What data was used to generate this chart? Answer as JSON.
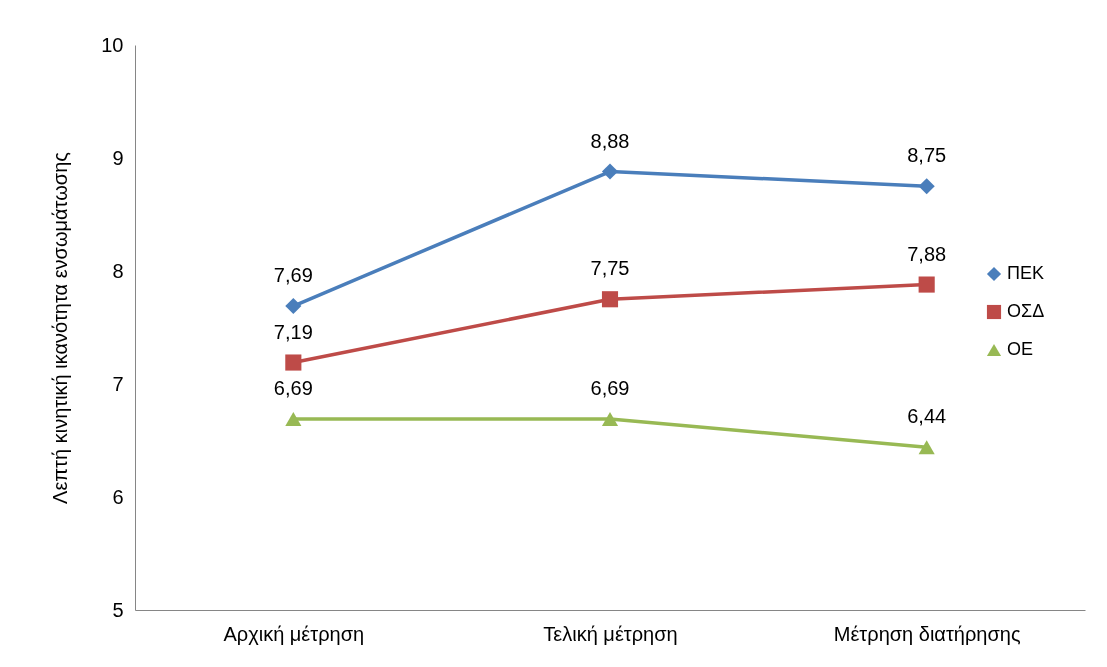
{
  "chart_data": {
    "type": "line",
    "ylabel": "Λεπτή κινητική ικανότητα ενσωμάτωσης",
    "categories": [
      "Αρχική μέτρηση",
      "Τελική μέτρηση",
      "Μέτρηση διατήρησης"
    ],
    "ylim": [
      5,
      10
    ],
    "yticks": [
      5,
      6,
      7,
      8,
      9,
      10
    ],
    "grid": false,
    "legend": "right",
    "line_style": "solid",
    "series": [
      {
        "name": "ΠΕΚ",
        "color": "#4a7ebb",
        "marker": "diamond",
        "values": [
          7.69,
          8.88,
          8.75
        ],
        "value_labels": [
          "7,69",
          "8,88",
          "8,75"
        ]
      },
      {
        "name": "ΟΣΔ",
        "color": "#be4b48",
        "marker": "square",
        "values": [
          7.19,
          7.75,
          7.88
        ],
        "value_labels": [
          "7,19",
          "7,75",
          "7,88"
        ]
      },
      {
        "name": "ΟΕ",
        "color": "#98b954",
        "marker": "triangle",
        "values": [
          6.69,
          6.69,
          6.44
        ],
        "value_labels": [
          "6,69",
          "6,69",
          "6,44"
        ]
      }
    ]
  }
}
